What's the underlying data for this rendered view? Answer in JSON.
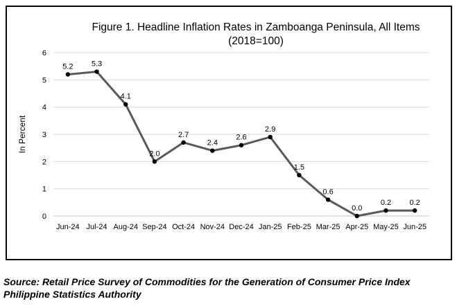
{
  "chart_data": {
    "type": "line",
    "title": "Figure 1. Headline Inflation Rates in Zamboanga Peninsula, All Items",
    "subtitle": "(2018=100)",
    "xlabel": "",
    "ylabel": "In Percent",
    "categories": [
      "Jun-24",
      "Jul-24",
      "Aug-24",
      "Sep-24",
      "Oct-24",
      "Nov-24",
      "Dec-24",
      "Jan-25",
      "Feb-25",
      "Mar-25",
      "Apr-25",
      "May-25",
      "Jun-25"
    ],
    "series": [
      {
        "values": [
          5.2,
          5.3,
          4.1,
          2.0,
          2.7,
          2.4,
          2.6,
          2.9,
          1.5,
          0.6,
          0.0,
          0.2,
          0.2
        ],
        "labels": [
          "5.2",
          "5.3",
          "4.1",
          "2.0",
          "2.7",
          "2.4",
          "2.6",
          "2.9",
          "1.5",
          "0.6",
          "0.0",
          "0.2",
          "0.2"
        ]
      }
    ],
    "ylim": [
      0,
      6
    ],
    "yticks": [
      "0",
      "1",
      "2",
      "3",
      "4",
      "5",
      "6"
    ],
    "grid": true,
    "legend": "none",
    "line_color": "#595959",
    "marker_color": "#000000",
    "grid_color": "#d9d9d9"
  },
  "source": {
    "line1": "Source: Retail Price Survey of Commodities for the Generation of Consumer Price Index",
    "line2": "Philippine Statistics Authority"
  }
}
